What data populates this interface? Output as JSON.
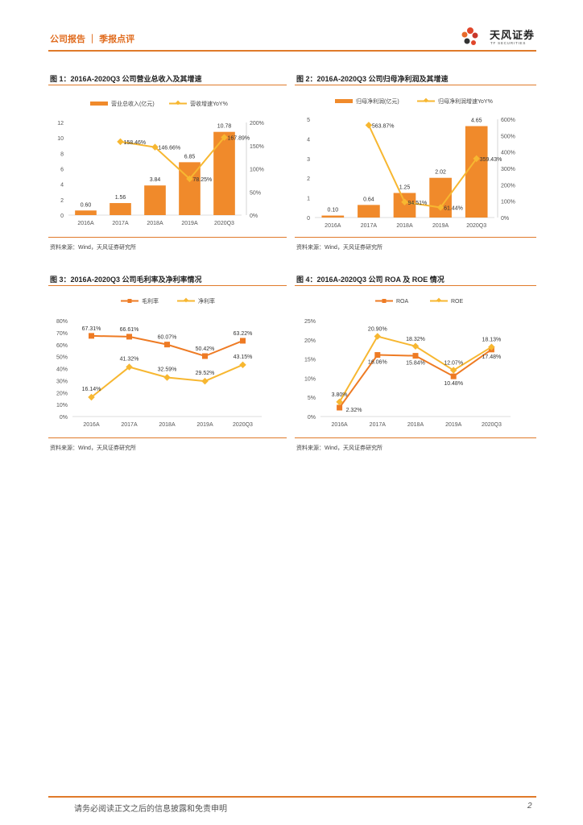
{
  "header": {
    "left": "公司报告 ｜ 季报点评",
    "logo_name": "天风证券",
    "logo_sub": "TF SECURITIES"
  },
  "colors": {
    "accent": "#e07a2a",
    "bar": "#f08a2b",
    "line_yellow": "#f7b731",
    "line_orange": "#ee7b24"
  },
  "figures": [
    {
      "title": "图 1：2016A-2020Q3 公司营业总收入及其增速",
      "source": "资料来源：Wind，天风证券研究所"
    },
    {
      "title": "图 2：2016A-2020Q3 公司归母净利润及其增速",
      "source": "资料来源：Wind，天风证券研究所"
    },
    {
      "title": "图 3：2016A-2020Q3 公司毛利率及净利率情况",
      "source": "资料来源：Wind，天风证券研究所"
    },
    {
      "title": "图 4：2016A-2020Q3 公司 ROA 及 ROE 情况",
      "source": "资料来源：Wind，天风证券研究所"
    }
  ],
  "chart_data": [
    {
      "type": "bar+line",
      "categories": [
        "2016A",
        "2017A",
        "2018A",
        "2019A",
        "2020Q3"
      ],
      "series": [
        {
          "name": "营业总收入(亿元)",
          "kind": "bar",
          "axis": "left",
          "values": [
            0.6,
            1.56,
            3.84,
            6.85,
            10.78
          ],
          "labels": [
            "0.60",
            "1.56",
            "3.84",
            "6.85",
            "10.78"
          ]
        },
        {
          "name": "营收增速YoY%",
          "kind": "line",
          "axis": "right",
          "values": [
            null,
            158.46,
            146.66,
            78.25,
            167.89
          ],
          "labels": [
            "",
            "158.46%",
            "146.66%",
            "78.25%",
            "167.89%"
          ]
        }
      ],
      "left_ticks": [
        "12",
        "10",
        "8",
        "6",
        "4",
        "2",
        "0"
      ],
      "ylim": [
        0,
        12
      ],
      "right_ticks": [
        "200%",
        "150%",
        "100%",
        "50%",
        "0%"
      ],
      "y2lim": [
        0,
        200
      ]
    },
    {
      "type": "bar+line",
      "categories": [
        "2016A",
        "2017A",
        "2018A",
        "2019A",
        "2020Q3"
      ],
      "series": [
        {
          "name": "归母净利润(亿元)",
          "kind": "bar",
          "axis": "left",
          "values": [
            0.1,
            0.64,
            1.25,
            2.02,
            4.65
          ],
          "labels": [
            "0.10",
            "0.64",
            "1.25",
            "2.02",
            "4.65"
          ]
        },
        {
          "name": "归母净利润增速YoY%",
          "kind": "line",
          "axis": "right",
          "values": [
            null,
            563.87,
            94.51,
            61.44,
            359.43
          ],
          "labels": [
            "",
            "563.87%",
            "94.51%",
            "61.44%",
            "359.43%"
          ]
        }
      ],
      "left_ticks": [
        "5",
        "4",
        "3",
        "2",
        "1",
        "0"
      ],
      "ylim": [
        0,
        5
      ],
      "right_ticks": [
        "600%",
        "500%",
        "400%",
        "300%",
        "200%",
        "100%",
        "0%"
      ],
      "y2lim": [
        0,
        600
      ]
    },
    {
      "type": "line",
      "categories": [
        "2016A",
        "2017A",
        "2018A",
        "2019A",
        "2020Q3"
      ],
      "series": [
        {
          "name": "毛利率",
          "marker": "square",
          "values": [
            67.31,
            66.61,
            60.07,
            50.42,
            63.22
          ],
          "labels": [
            "67.31%",
            "66.61%",
            "60.07%",
            "50.42%",
            "63.22%"
          ]
        },
        {
          "name": "净利率",
          "marker": "diamond",
          "values": [
            16.14,
            41.32,
            32.59,
            29.52,
            43.15
          ],
          "labels": [
            "16.14%",
            "41.32%",
            "32.59%",
            "29.52%",
            "43.15%"
          ]
        }
      ],
      "left_ticks": [
        "80%",
        "70%",
        "60%",
        "50%",
        "40%",
        "30%",
        "20%",
        "10%",
        "0%"
      ],
      "ylim": [
        0,
        80
      ]
    },
    {
      "type": "line",
      "categories": [
        "2016A",
        "2017A",
        "2018A",
        "2019A",
        "2020Q3"
      ],
      "series": [
        {
          "name": "ROA",
          "marker": "square",
          "values": [
            2.32,
            16.06,
            15.84,
            10.48,
            17.48
          ],
          "labels": [
            "2.32%",
            "16.06%",
            "15.84%",
            "10.48%",
            "17.48%"
          ]
        },
        {
          "name": "ROE",
          "marker": "diamond",
          "values": [
            3.8,
            20.9,
            18.32,
            12.07,
            18.13
          ],
          "labels": [
            "3.80%",
            "20.90%",
            "18.32%",
            "12.07%",
            "18.13%"
          ]
        }
      ],
      "left_ticks": [
        "25%",
        "20%",
        "15%",
        "10%",
        "5%",
        "0%"
      ],
      "ylim": [
        0,
        25
      ]
    }
  ],
  "footer": {
    "disclaimer": "请务必阅读正文之后的信息披露和免责申明",
    "page": "2"
  }
}
